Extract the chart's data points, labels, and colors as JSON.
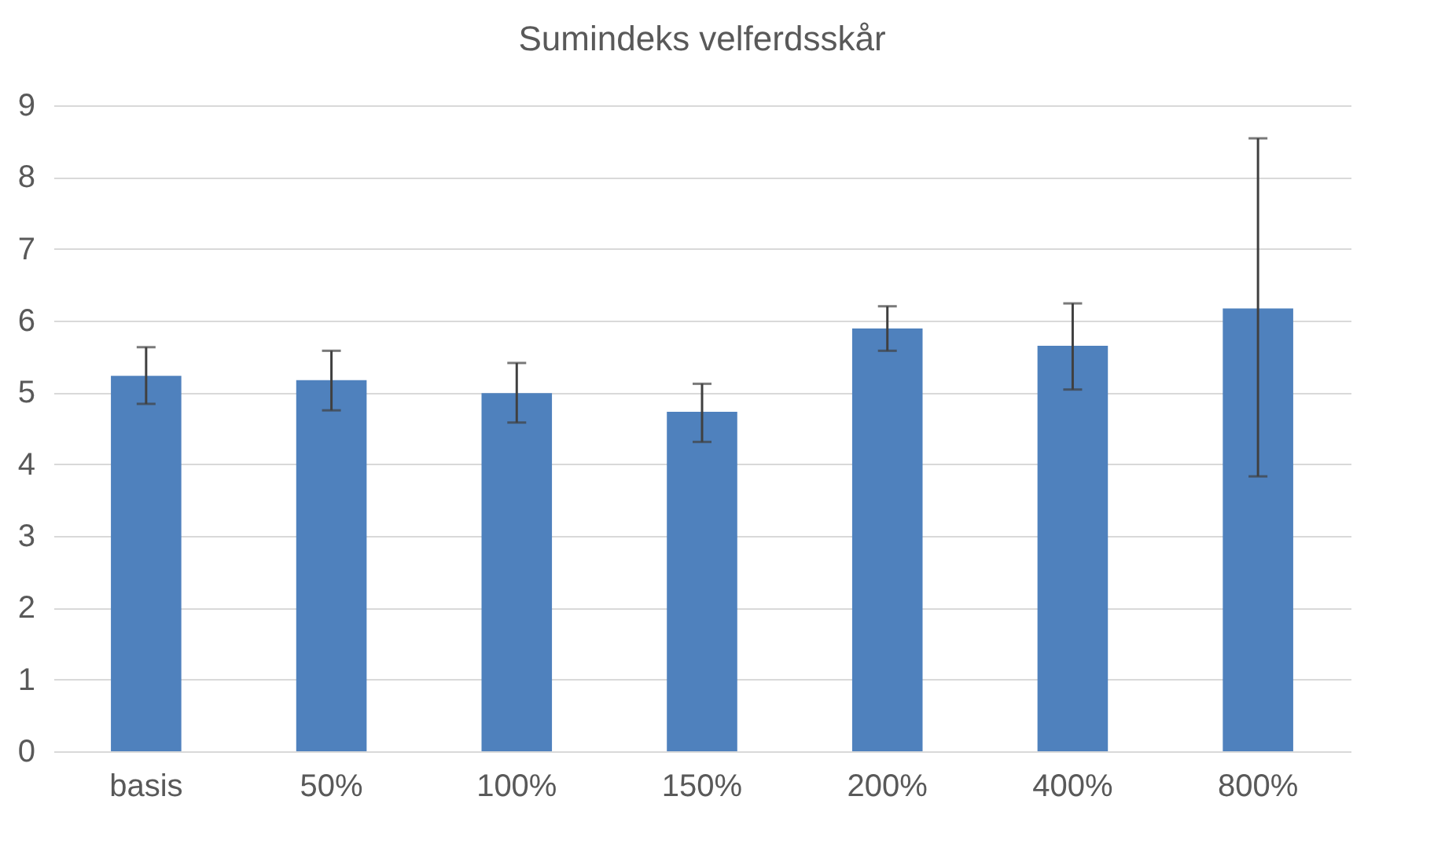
{
  "chart_data": {
    "type": "bar",
    "title": "Sumindeks velferdsskår",
    "categories": [
      "basis",
      "50%",
      "100%",
      "150%",
      "200%",
      "400%",
      "800%"
    ],
    "values": [
      5.23,
      5.17,
      4.99,
      4.73,
      5.89,
      5.65,
      6.17
    ],
    "errors": [
      [
        4.84,
        5.63
      ],
      [
        4.75,
        5.58
      ],
      [
        4.58,
        5.41
      ],
      [
        4.31,
        5.12
      ],
      [
        5.58,
        6.2
      ],
      [
        5.04,
        6.24
      ],
      [
        3.83,
        8.54
      ]
    ],
    "color": "#4f81bd",
    "ylim": [
      0,
      9
    ],
    "yticks": [
      0,
      1,
      2,
      3,
      4,
      5,
      6,
      7,
      8,
      9
    ],
    "grid": "y"
  }
}
